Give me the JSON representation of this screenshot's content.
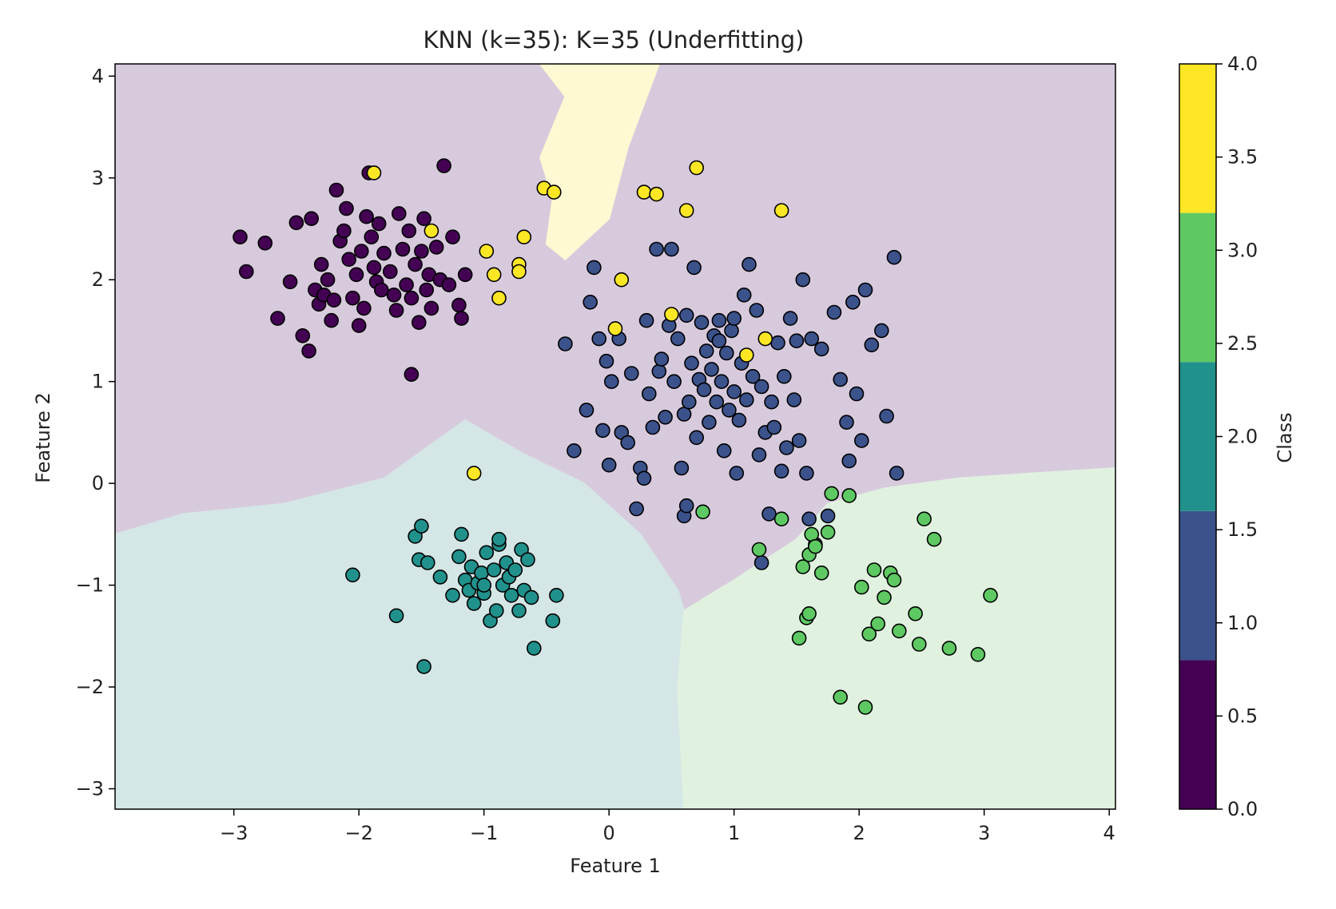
{
  "chart_data": {
    "type": "scatter",
    "title": "KNN (k=35): K=35 (Underfitting)",
    "xlabel": "Feature 1",
    "ylabel": "Feature 2",
    "xlim": [
      -3.95,
      4.05
    ],
    "ylim": [
      -3.2,
      4.12
    ],
    "xticks": [
      "−3",
      "−2",
      "−1",
      "0",
      "1",
      "2",
      "3",
      "4"
    ],
    "xtick_values": [
      -3,
      -2,
      -1,
      0,
      1,
      2,
      3,
      4
    ],
    "yticks": [
      "−3",
      "−2",
      "−1",
      "0",
      "1",
      "2",
      "3",
      "4"
    ],
    "ytick_values": [
      -3,
      -2,
      -1,
      0,
      1,
      2,
      3,
      4
    ],
    "grid": false,
    "classes": [
      {
        "value": 0,
        "color": "#440154",
        "region_color": "#d8cadd"
      },
      {
        "value": 1,
        "color": "#3b528b",
        "region_color": "#d8cadd"
      },
      {
        "value": 2,
        "color": "#21918c",
        "region_color": "#d4e6e6"
      },
      {
        "value": 3,
        "color": "#5ec962",
        "region_color": "#e0f1e0"
      },
      {
        "value": 4,
        "color": "#fde725",
        "region_color": "#fdf9d2"
      }
    ],
    "decision_regions": [
      {
        "class": 4,
        "polygon": [
          [
            -0.55,
            4.12
          ],
          [
            0.4,
            4.12
          ],
          [
            0.15,
            3.3
          ],
          [
            0.0,
            2.6
          ],
          [
            -0.35,
            2.2
          ],
          [
            -0.5,
            2.35
          ],
          [
            -0.45,
            2.8
          ],
          [
            -0.55,
            3.2
          ],
          [
            -0.35,
            3.8
          ]
        ]
      },
      {
        "class": 2,
        "polygon": [
          [
            -3.95,
            -0.5
          ],
          [
            -3.4,
            -0.3
          ],
          [
            -2.6,
            -0.2
          ],
          [
            -1.8,
            0.05
          ],
          [
            -1.15,
            0.62
          ],
          [
            -0.7,
            0.3
          ],
          [
            -0.2,
            0.0
          ],
          [
            0.25,
            -0.5
          ],
          [
            0.55,
            -1.05
          ],
          [
            0.6,
            -1.25
          ],
          [
            0.55,
            -2.0
          ],
          [
            0.6,
            -3.2
          ],
          [
            -3.95,
            -3.2
          ]
        ]
      },
      {
        "class": 3,
        "polygon": [
          [
            0.6,
            -3.2
          ],
          [
            0.55,
            -2.0
          ],
          [
            0.6,
            -1.25
          ],
          [
            1.0,
            -0.95
          ],
          [
            1.5,
            -0.55
          ],
          [
            1.75,
            -0.2
          ],
          [
            2.2,
            -0.05
          ],
          [
            2.8,
            0.05
          ],
          [
            3.4,
            0.1
          ],
          [
            4.05,
            0.15
          ],
          [
            4.05,
            -3.2
          ]
        ]
      }
    ],
    "points": {
      "class_0": [
        [
          -2.95,
          2.42
        ],
        [
          -2.9,
          2.08
        ],
        [
          -2.75,
          2.36
        ],
        [
          -2.65,
          1.62
        ],
        [
          -2.55,
          1.98
        ],
        [
          -2.5,
          2.56
        ],
        [
          -2.45,
          1.45
        ],
        [
          -2.4,
          1.3
        ],
        [
          -2.38,
          2.6
        ],
        [
          -2.35,
          1.9
        ],
        [
          -2.32,
          1.76
        ],
        [
          -2.3,
          2.15
        ],
        [
          -2.28,
          1.85
        ],
        [
          -2.25,
          2.0
        ],
        [
          -2.22,
          1.6
        ],
        [
          -2.2,
          1.8
        ],
        [
          -2.18,
          2.88
        ],
        [
          -2.15,
          2.38
        ],
        [
          -2.12,
          2.48
        ],
        [
          -2.1,
          2.7
        ],
        [
          -2.08,
          2.2
        ],
        [
          -2.05,
          1.82
        ],
        [
          -2.02,
          2.05
        ],
        [
          -2.0,
          1.55
        ],
        [
          -1.98,
          2.28
        ],
        [
          -1.96,
          1.72
        ],
        [
          -1.94,
          2.62
        ],
        [
          -1.92,
          3.05
        ],
        [
          -1.9,
          2.42
        ],
        [
          -1.88,
          2.12
        ],
        [
          -1.86,
          1.98
        ],
        [
          -1.84,
          2.55
        ],
        [
          -1.82,
          1.9
        ],
        [
          -1.8,
          2.26
        ],
        [
          -1.75,
          2.08
        ],
        [
          -1.72,
          1.85
        ],
        [
          -1.7,
          1.7
        ],
        [
          -1.68,
          2.65
        ],
        [
          -1.65,
          2.3
        ],
        [
          -1.62,
          1.95
        ],
        [
          -1.6,
          2.48
        ],
        [
          -1.58,
          1.82
        ],
        [
          -1.55,
          2.15
        ],
        [
          -1.52,
          1.58
        ],
        [
          -1.5,
          2.28
        ],
        [
          -1.48,
          2.6
        ],
        [
          -1.46,
          1.9
        ],
        [
          -1.44,
          2.05
        ],
        [
          -1.42,
          1.72
        ],
        [
          -1.38,
          2.32
        ],
        [
          -1.35,
          2.0
        ],
        [
          -1.32,
          3.12
        ],
        [
          -1.28,
          1.95
        ],
        [
          -1.25,
          2.42
        ],
        [
          -1.2,
          1.75
        ],
        [
          -1.18,
          1.62
        ],
        [
          -1.15,
          2.05
        ],
        [
          -1.58,
          1.07
        ]
      ],
      "class_1": [
        [
          -0.35,
          1.37
        ],
        [
          -0.28,
          0.32
        ],
        [
          -0.18,
          0.72
        ],
        [
          -0.15,
          1.78
        ],
        [
          -0.12,
          2.12
        ],
        [
          -0.08,
          1.42
        ],
        [
          -0.05,
          0.52
        ],
        [
          -0.02,
          1.2
        ],
        [
          0.0,
          0.18
        ],
        [
          0.02,
          1.0
        ],
        [
          0.08,
          1.42
        ],
        [
          0.1,
          0.5
        ],
        [
          0.15,
          0.4
        ],
        [
          0.18,
          1.08
        ],
        [
          0.22,
          -0.25
        ],
        [
          0.25,
          0.15
        ],
        [
          0.28,
          0.05
        ],
        [
          0.3,
          1.6
        ],
        [
          0.32,
          0.88
        ],
        [
          0.35,
          0.55
        ],
        [
          0.38,
          2.3
        ],
        [
          0.4,
          1.1
        ],
        [
          0.42,
          1.22
        ],
        [
          0.45,
          0.65
        ],
        [
          0.48,
          1.55
        ],
        [
          0.5,
          2.3
        ],
        [
          0.52,
          1.0
        ],
        [
          0.55,
          1.42
        ],
        [
          0.58,
          0.15
        ],
        [
          0.6,
          0.68
        ],
        [
          0.62,
          1.65
        ],
        [
          0.64,
          0.8
        ],
        [
          0.66,
          1.18
        ],
        [
          0.68,
          2.12
        ],
        [
          0.7,
          0.45
        ],
        [
          0.72,
          1.02
        ],
        [
          0.74,
          1.58
        ],
        [
          0.76,
          0.92
        ],
        [
          0.78,
          1.3
        ],
        [
          0.8,
          0.6
        ],
        [
          0.82,
          1.12
        ],
        [
          0.84,
          1.45
        ],
        [
          0.86,
          0.8
        ],
        [
          0.88,
          1.6
        ],
        [
          0.9,
          1.0
        ],
        [
          0.92,
          0.32
        ],
        [
          0.94,
          1.28
        ],
        [
          0.96,
          0.72
        ],
        [
          0.98,
          1.5
        ],
        [
          1.0,
          0.9
        ],
        [
          1.02,
          0.1
        ],
        [
          1.04,
          0.62
        ],
        [
          1.06,
          1.18
        ],
        [
          1.08,
          1.85
        ],
        [
          1.1,
          0.82
        ],
        [
          1.12,
          2.15
        ],
        [
          1.15,
          1.05
        ],
        [
          1.18,
          1.7
        ],
        [
          1.2,
          0.28
        ],
        [
          1.22,
          0.95
        ],
        [
          1.25,
          0.5
        ],
        [
          1.28,
          -0.3
        ],
        [
          1.3,
          0.8
        ],
        [
          1.32,
          0.55
        ],
        [
          1.35,
          1.38
        ],
        [
          1.38,
          0.12
        ],
        [
          1.4,
          1.05
        ],
        [
          1.42,
          0.35
        ],
        [
          1.45,
          1.62
        ],
        [
          1.48,
          0.82
        ],
        [
          1.5,
          1.4
        ],
        [
          1.52,
          0.42
        ],
        [
          1.55,
          2.0
        ],
        [
          1.58,
          0.1
        ],
        [
          1.6,
          -0.35
        ],
        [
          1.62,
          1.42
        ],
        [
          1.65,
          -0.6
        ],
        [
          1.7,
          1.32
        ],
        [
          1.75,
          -0.32
        ],
        [
          1.8,
          1.68
        ],
        [
          1.85,
          1.02
        ],
        [
          1.9,
          0.6
        ],
        [
          1.92,
          0.22
        ],
        [
          1.95,
          1.78
        ],
        [
          1.98,
          0.88
        ],
        [
          2.02,
          0.42
        ],
        [
          2.05,
          1.9
        ],
        [
          2.1,
          1.36
        ],
        [
          2.18,
          1.5
        ],
        [
          2.22,
          0.66
        ],
        [
          2.28,
          2.22
        ],
        [
          2.3,
          0.1
        ],
        [
          1.22,
          -0.78
        ],
        [
          0.6,
          -0.32
        ],
        [
          0.62,
          -0.22
        ],
        [
          1.0,
          1.62
        ],
        [
          0.88,
          1.4
        ]
      ],
      "class_2": [
        [
          -2.05,
          -0.9
        ],
        [
          -1.7,
          -1.3
        ],
        [
          -1.55,
          -0.52
        ],
        [
          -1.52,
          -0.75
        ],
        [
          -1.5,
          -0.42
        ],
        [
          -1.48,
          -1.8
        ],
        [
          -1.45,
          -0.78
        ],
        [
          -1.35,
          -0.92
        ],
        [
          -1.25,
          -1.1
        ],
        [
          -1.2,
          -0.72
        ],
        [
          -1.18,
          -0.5
        ],
        [
          -1.15,
          -0.95
        ],
        [
          -1.12,
          -1.05
        ],
        [
          -1.1,
          -0.82
        ],
        [
          -1.08,
          -1.18
        ],
        [
          -1.05,
          -0.98
        ],
        [
          -1.02,
          -0.88
        ],
        [
          -1.0,
          -1.08
        ],
        [
          -0.98,
          -0.68
        ],
        [
          -0.95,
          -1.35
        ],
        [
          -0.92,
          -0.85
        ],
        [
          -0.9,
          -1.25
        ],
        [
          -0.88,
          -0.6
        ],
        [
          -0.85,
          -1.0
        ],
        [
          -0.82,
          -0.78
        ],
        [
          -0.8,
          -0.92
        ],
        [
          -0.78,
          -1.1
        ],
        [
          -0.75,
          -0.85
        ],
        [
          -0.72,
          -1.25
        ],
        [
          -0.7,
          -0.65
        ],
        [
          -0.68,
          -1.05
        ],
        [
          -0.65,
          -0.75
        ],
        [
          -0.62,
          -1.12
        ],
        [
          -0.6,
          -1.62
        ],
        [
          -0.45,
          -1.35
        ],
        [
          -0.42,
          -1.1
        ],
        [
          -0.88,
          -0.55
        ],
        [
          -1.0,
          -1.0
        ]
      ],
      "class_3": [
        [
          0.75,
          -0.28
        ],
        [
          1.2,
          -0.65
        ],
        [
          1.38,
          -0.35
        ],
        [
          1.52,
          -1.52
        ],
        [
          1.55,
          -0.82
        ],
        [
          1.58,
          -1.32
        ],
        [
          1.6,
          -0.7
        ],
        [
          1.62,
          -0.5
        ],
        [
          1.65,
          -0.62
        ],
        [
          1.7,
          -0.88
        ],
        [
          1.75,
          -0.48
        ],
        [
          1.78,
          -0.1
        ],
        [
          1.85,
          -2.1
        ],
        [
          1.92,
          -0.12
        ],
        [
          2.02,
          -1.02
        ],
        [
          2.05,
          -2.2
        ],
        [
          2.08,
          -1.48
        ],
        [
          2.12,
          -0.85
        ],
        [
          2.15,
          -1.38
        ],
        [
          2.2,
          -1.12
        ],
        [
          2.25,
          -0.88
        ],
        [
          2.28,
          -0.95
        ],
        [
          2.32,
          -1.45
        ],
        [
          2.45,
          -1.28
        ],
        [
          2.48,
          -1.58
        ],
        [
          2.52,
          -0.35
        ],
        [
          2.6,
          -0.55
        ],
        [
          2.72,
          -1.62
        ],
        [
          2.95,
          -1.68
        ],
        [
          3.05,
          -1.1
        ],
        [
          1.6,
          -1.28
        ]
      ],
      "class_4": [
        [
          -1.88,
          3.05
        ],
        [
          -1.42,
          2.48
        ],
        [
          -0.98,
          2.28
        ],
        [
          -0.92,
          2.05
        ],
        [
          -0.88,
          1.82
        ],
        [
          -0.72,
          2.15
        ],
        [
          -0.72,
          2.08
        ],
        [
          -0.68,
          2.42
        ],
        [
          -0.52,
          2.9
        ],
        [
          -0.44,
          2.86
        ],
        [
          0.05,
          1.52
        ],
        [
          0.1,
          2.0
        ],
        [
          0.28,
          2.86
        ],
        [
          0.38,
          2.84
        ],
        [
          0.5,
          1.66
        ],
        [
          0.62,
          2.68
        ],
        [
          0.7,
          3.1
        ],
        [
          1.1,
          1.26
        ],
        [
          1.25,
          1.42
        ],
        [
          1.38,
          2.68
        ],
        [
          -1.08,
          0.1
        ]
      ]
    },
    "colorbar": {
      "label": "Class",
      "ticks": [
        "0.0",
        "0.5",
        "1.0",
        "1.5",
        "2.0",
        "2.5",
        "3.0",
        "3.5",
        "4.0"
      ],
      "tick_values": [
        0,
        0.5,
        1.0,
        1.5,
        2.0,
        2.5,
        3.0,
        3.5,
        4.0
      ],
      "bands": [
        {
          "from": 0.0,
          "to": 0.8,
          "color": "#440154"
        },
        {
          "from": 0.8,
          "to": 1.6,
          "color": "#3b528b"
        },
        {
          "from": 1.6,
          "to": 2.4,
          "color": "#21918c"
        },
        {
          "from": 2.4,
          "to": 3.2,
          "color": "#5ec962"
        },
        {
          "from": 3.2,
          "to": 4.0,
          "color": "#fde725"
        }
      ]
    }
  }
}
